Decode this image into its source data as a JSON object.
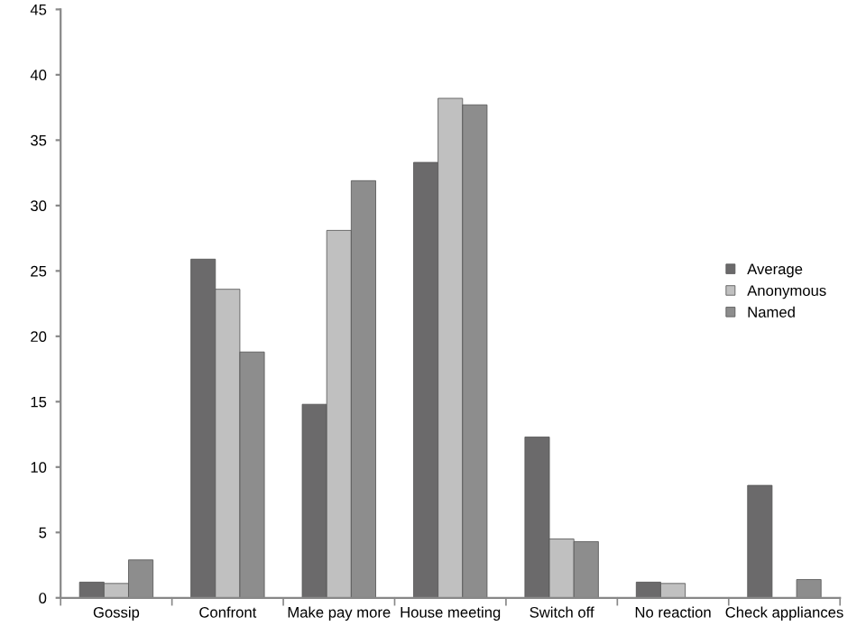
{
  "chart_data": {
    "type": "bar",
    "categories": [
      "Gossip",
      "Confront",
      "Make pay more",
      "House meeting",
      "Switch off",
      "No reaction",
      "Check appliances"
    ],
    "series": [
      {
        "name": "Average",
        "color": "#6b6a6b",
        "values": [
          1.2,
          25.9,
          14.8,
          33.3,
          12.3,
          1.2,
          8.6
        ]
      },
      {
        "name": "Anonymous",
        "color": "#c0c0c0",
        "values": [
          1.1,
          23.6,
          28.1,
          38.2,
          4.5,
          1.1,
          null
        ]
      },
      {
        "name": "Named",
        "color": "#8d8d8d",
        "values": [
          2.9,
          18.8,
          31.9,
          37.7,
          4.3,
          null,
          1.4
        ]
      }
    ],
    "ylim": [
      0,
      45
    ],
    "yticks": [
      0,
      5,
      10,
      15,
      20,
      25,
      30,
      35,
      40,
      45
    ],
    "grid": false,
    "legend": "right"
  }
}
